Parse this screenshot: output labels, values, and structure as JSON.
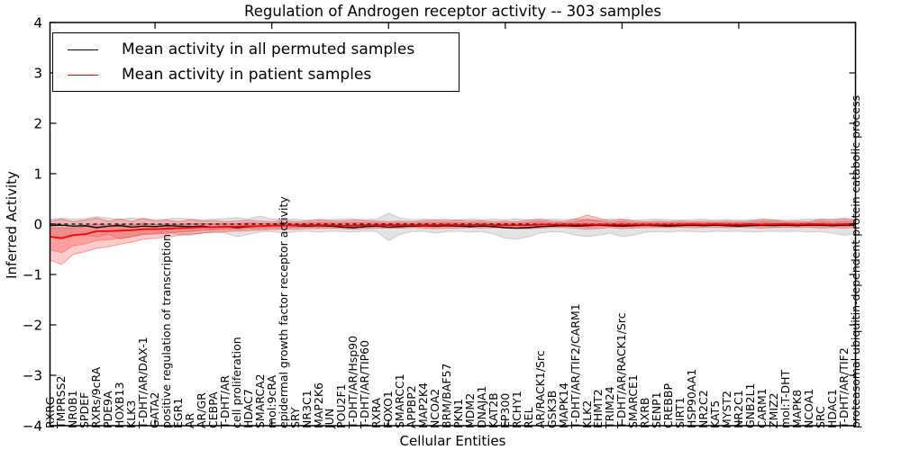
{
  "chart_data": {
    "type": "line",
    "title": "Regulation of Androgen receptor activity -- 303 samples",
    "xlabel": "Cellular Entities",
    "ylabel": "Inferred Activity",
    "ylim": [
      -4,
      4
    ],
    "y_ticks": [
      4,
      3,
      2,
      1,
      0,
      -1,
      -2,
      -3,
      -4
    ],
    "x_tick_indices": [
      9,
      19,
      29,
      39,
      49,
      59,
      69
    ],
    "grid": false,
    "legend_position": "upper left",
    "zero_reference_line": {
      "style": "dashed",
      "color": "#000000",
      "y": 0
    },
    "categories": [
      "RXRG",
      "TMPRSS2",
      "NR0B1",
      "SPDEF",
      "RXRs/9cRA",
      "PDE9A",
      "HOXB13",
      "KLK3",
      "T-DHT/AR/DAX-1",
      "GATA2",
      "positive regulation of transcription",
      "EGR1",
      "AR",
      "AR/GR",
      "CEBPA",
      "T-DHT/AR",
      "cell proliferation",
      "HDAC7",
      "SMARCA2",
      "mol:9cRA",
      "epidermal growth factor receptor activity",
      "SRY",
      "NR3C1",
      "MAP2K6",
      "JUN",
      "POU2F1",
      "T-DHT/AR/Hsp90",
      "T-DHT/AR/TIP60",
      "RXRA",
      "FOXO1",
      "SMARCC1",
      "APPBP2",
      "MAP2K4",
      "NCOA2",
      "BRM/BAF57",
      "PKN1",
      "MDM2",
      "DNAJA1",
      "KAT2B",
      "EP300",
      "RCHY1",
      "REL",
      "AR/RACK1/Src",
      "GSK3B",
      "MAPK14",
      "T-DHT/AR/TIF2/CARM1",
      "KLK2",
      "EHMT2",
      "TRIM24",
      "T-DHT/AR/RACK1/Src",
      "SMARCE1",
      "RXRB",
      "SENP1",
      "CREBBP",
      "SIRT1",
      "HSP90AA1",
      "NR2C2",
      "KAT5",
      "MYST2",
      "NR2C1",
      "GNB2L1",
      "CARM1",
      "ZMIZ2",
      "mol:T-DHT",
      "MAPK8",
      "NCOA1",
      "SRC",
      "HDAC1",
      "T-DHT/AR/TIF2",
      "proteasomal ubiquitin-dependent protein catabolic process"
    ],
    "series": [
      {
        "name": "Mean activity in all permuted samples",
        "color": "#000000",
        "band_fill": "rgba(0,0,0,0.11)",
        "band_edge": "rgba(0,0,0,0.15)",
        "mean": [
          -0.03,
          -0.02,
          -0.04,
          -0.03,
          -0.07,
          -0.04,
          -0.03,
          -0.06,
          -0.04,
          -0.05,
          -0.03,
          -0.04,
          -0.05,
          -0.04,
          -0.06,
          -0.05,
          -0.07,
          -0.05,
          -0.04,
          -0.03,
          -0.02,
          -0.03,
          -0.04,
          -0.03,
          -0.04,
          -0.06,
          -0.07,
          -0.05,
          -0.04,
          -0.06,
          -0.05,
          -0.04,
          -0.03,
          -0.04,
          -0.03,
          -0.04,
          -0.05,
          -0.04,
          -0.05,
          -0.07,
          -0.08,
          -0.07,
          -0.05,
          -0.04,
          -0.03,
          -0.04,
          -0.03,
          -0.02,
          -0.03,
          -0.04,
          -0.03,
          -0.02,
          -0.03,
          -0.04,
          -0.03,
          -0.02,
          -0.03,
          -0.02,
          -0.03,
          -0.04,
          -0.03,
          -0.02,
          -0.03,
          -0.02,
          -0.03,
          -0.02,
          -0.02,
          -0.03,
          -0.02,
          -0.02
        ],
        "band_upper": [
          0.1,
          0.12,
          0.1,
          0.11,
          0.15,
          0.12,
          0.1,
          0.12,
          0.1,
          0.09,
          0.1,
          0.12,
          0.1,
          0.09,
          0.1,
          0.11,
          0.13,
          0.1,
          0.16,
          0.1,
          0.09,
          0.1,
          0.08,
          0.1,
          0.09,
          0.1,
          0.11,
          0.09,
          0.1,
          0.22,
          0.12,
          0.09,
          0.1,
          0.09,
          0.1,
          0.08,
          0.1,
          0.09,
          0.1,
          0.09,
          0.1,
          0.09,
          0.08,
          0.1,
          0.09,
          0.1,
          0.09,
          0.08,
          0.1,
          0.09,
          0.08,
          0.09,
          0.1,
          0.09,
          0.08,
          0.09,
          0.1,
          0.08,
          0.09,
          0.08,
          0.09,
          0.08,
          0.09,
          0.08,
          0.09,
          0.1,
          0.09,
          0.1,
          0.12,
          0.1
        ],
        "band_lower": [
          -0.2,
          -0.25,
          -0.2,
          -0.22,
          -0.25,
          -0.2,
          -0.3,
          -0.25,
          -0.2,
          -0.18,
          -0.16,
          -0.2,
          -0.22,
          -0.18,
          -0.16,
          -0.18,
          -0.25,
          -0.2,
          -0.16,
          -0.15,
          -0.18,
          -0.15,
          -0.14,
          -0.16,
          -0.14,
          -0.15,
          -0.16,
          -0.14,
          -0.15,
          -0.33,
          -0.2,
          -0.15,
          -0.14,
          -0.18,
          -0.15,
          -0.14,
          -0.16,
          -0.15,
          -0.2,
          -0.28,
          -0.3,
          -0.25,
          -0.18,
          -0.15,
          -0.16,
          -0.22,
          -0.25,
          -0.22,
          -0.18,
          -0.25,
          -0.22,
          -0.16,
          -0.15,
          -0.16,
          -0.14,
          -0.15,
          -0.16,
          -0.14,
          -0.15,
          -0.14,
          -0.16,
          -0.15,
          -0.14,
          -0.15,
          -0.14,
          -0.16,
          -0.15,
          -0.18,
          -0.22,
          -0.2
        ]
      },
      {
        "name": "Mean activity in patient samples",
        "color": "#ff0000",
        "band_fill": "rgba(255,0,0,0.20)",
        "band_inner_fill": "rgba(255,0,0,0.22)",
        "band_edge": "rgba(255,0,0,0.35)",
        "mean": [
          -0.25,
          -0.28,
          -0.22,
          -0.2,
          -0.14,
          -0.14,
          -0.13,
          -0.12,
          -0.1,
          -0.1,
          -0.09,
          -0.08,
          -0.07,
          -0.06,
          -0.06,
          -0.05,
          -0.05,
          -0.04,
          -0.04,
          -0.03,
          -0.03,
          -0.02,
          -0.02,
          -0.02,
          -0.02,
          -0.03,
          -0.03,
          -0.02,
          -0.02,
          -0.02,
          -0.02,
          -0.02,
          -0.02,
          -0.02,
          -0.01,
          -0.02,
          -0.02,
          -0.01,
          -0.02,
          -0.02,
          -0.02,
          -0.02,
          -0.01,
          -0.01,
          -0.01,
          -0.01,
          -0.01,
          -0.01,
          -0.01,
          -0.01,
          -0.01,
          -0.01,
          -0.01,
          -0.01,
          -0.01,
          0.0,
          -0.01,
          0.0,
          -0.01,
          -0.01,
          0.0,
          -0.01,
          0.0,
          0.0,
          -0.01,
          0.0,
          0.0,
          -0.01,
          0.0,
          0.0
        ],
        "band_upper": [
          0.06,
          0.1,
          0.05,
          0.08,
          0.12,
          0.06,
          0.1,
          0.05,
          0.12,
          0.06,
          0.08,
          0.05,
          0.09,
          0.06,
          0.07,
          0.05,
          0.06,
          0.08,
          0.06,
          0.05,
          0.07,
          0.05,
          0.06,
          0.08,
          0.07,
          0.06,
          0.08,
          0.07,
          0.06,
          0.05,
          0.06,
          0.05,
          0.07,
          0.08,
          0.07,
          0.08,
          0.06,
          0.07,
          0.05,
          0.06,
          0.05,
          0.08,
          0.1,
          0.06,
          0.05,
          0.1,
          0.18,
          0.12,
          0.06,
          0.1,
          0.06,
          0.05,
          0.06,
          0.05,
          0.06,
          0.05,
          0.06,
          0.05,
          0.06,
          0.05,
          0.06,
          0.1,
          0.08,
          0.05,
          0.06,
          0.05,
          0.1,
          0.08,
          0.1,
          0.08
        ],
        "band_lower": [
          -0.72,
          -0.8,
          -0.6,
          -0.55,
          -0.48,
          -0.45,
          -0.4,
          -0.36,
          -0.3,
          -0.28,
          -0.26,
          -0.22,
          -0.2,
          -0.18,
          -0.16,
          -0.15,
          -0.14,
          -0.13,
          -0.12,
          -0.11,
          -0.1,
          -0.1,
          -0.09,
          -0.09,
          -0.08,
          -0.09,
          -0.1,
          -0.09,
          -0.08,
          -0.08,
          -0.08,
          -0.07,
          -0.08,
          -0.09,
          -0.08,
          -0.08,
          -0.07,
          -0.08,
          -0.07,
          -0.08,
          -0.09,
          -0.09,
          -0.08,
          -0.07,
          -0.07,
          -0.08,
          -0.1,
          -0.09,
          -0.07,
          -0.09,
          -0.08,
          -0.07,
          -0.07,
          -0.07,
          -0.06,
          -0.07,
          -0.07,
          -0.06,
          -0.07,
          -0.06,
          -0.07,
          -0.08,
          -0.07,
          -0.06,
          -0.07,
          -0.06,
          -0.08,
          -0.07,
          -0.08,
          -0.07
        ]
      }
    ]
  }
}
